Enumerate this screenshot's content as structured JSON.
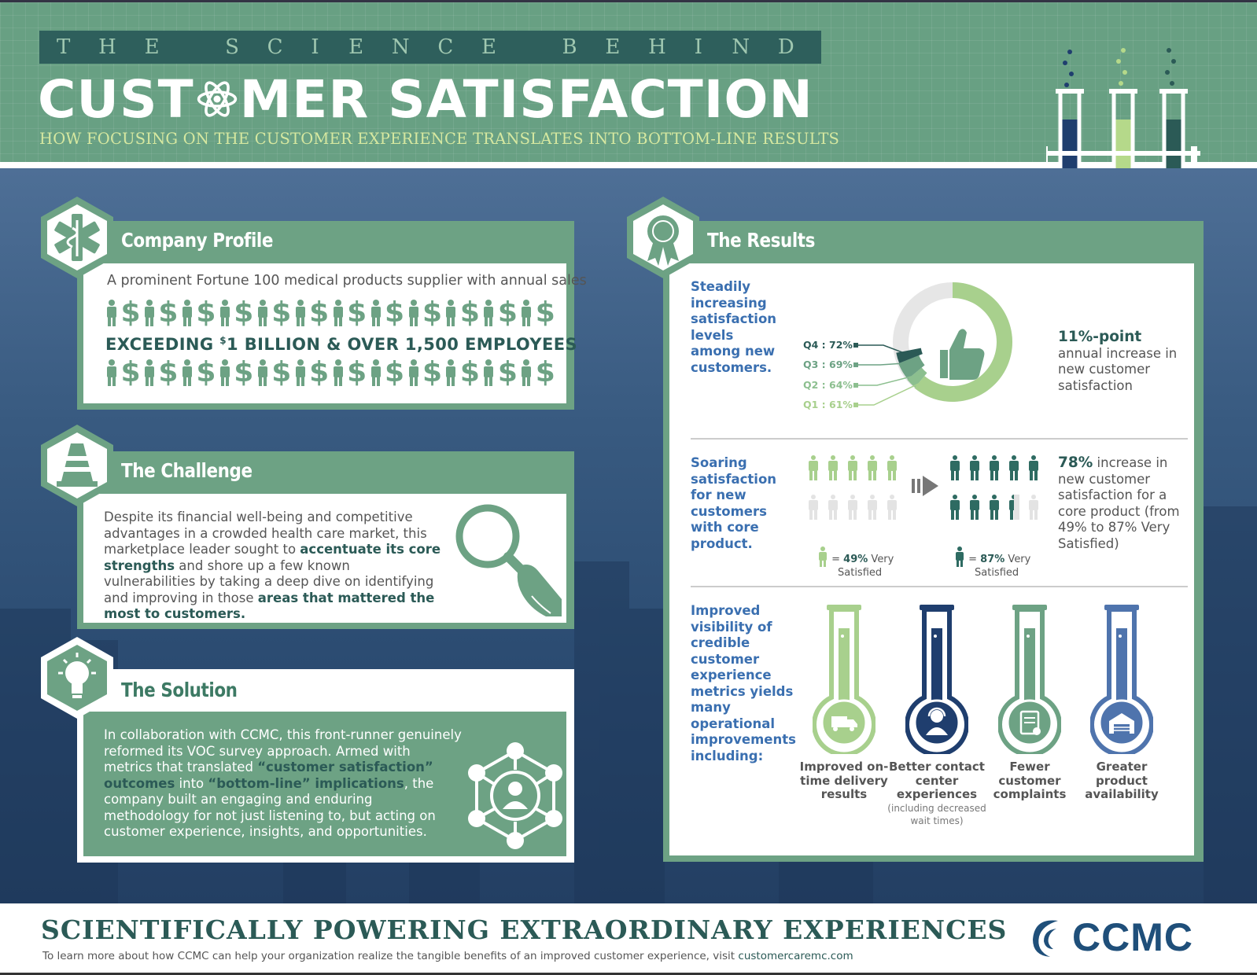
{
  "header": {
    "kicker_letters": [
      "T",
      "H",
      "E",
      "",
      "S",
      "C",
      "I",
      "E",
      "N",
      "C",
      "E",
      "",
      "B",
      "E",
      "H",
      "I",
      "N",
      "D"
    ],
    "title_part1": "CUST",
    "title_part2": "MER SATISFACTION",
    "subtitle": "HOW FOCUSING ON THE CUSTOMER EXPERIENCE TRANSLATES INTO BOTTOM-LINE RESULTS"
  },
  "colors": {
    "green": "#6da284",
    "dark_teal": "#2b5a56",
    "blue_text": "#3a6fb0",
    "light_green": "#a8d08d",
    "navy": "#1f3e6e"
  },
  "profile": {
    "title": "Company Profile",
    "icon": "medical-caduceus-icon",
    "intro": "A prominent Fortune 100 medical products supplier with annual sales",
    "dollar_glyph": "$",
    "exceeding_a": "EXCEEDING ",
    "exceeding_sup": "$",
    "exceeding_b": "1 BILLION & OVER 1,500 EMPLOYEES"
  },
  "challenge": {
    "title": "The Challenge",
    "icon": "traffic-cone-icon",
    "t1": "Despite its financial well-being and competitive advantages in a crowded health care market, this marketplace leader sought to ",
    "b1": "accentuate its core strengths",
    "t2": " and shore up a few known vulnerabilities by taking a deep dive on identifying and improving in those ",
    "b2": "areas that mattered the most to customers."
  },
  "solution": {
    "title": "The Solution",
    "icon": "lightbulb-icon",
    "t1": "In collaboration with CCMC, this front-runner genuinely reformed its VOC survey approach. Armed with metrics that translated ",
    "b1": "“customer satisfaction” outcomes",
    "t2": " into ",
    "b2": "“bottom-line” implications",
    "t3": ", the company built an engaging and enduring methodology for not just listening to, but acting on customer experience, insights, and opportunities."
  },
  "results": {
    "title": "The Results",
    "icon": "award-ribbon-icon",
    "sec1_lead": "Steadily increasing satisfaction levels among new customers.",
    "sec1_stat": "11%-point",
    "sec1_desc": " annual increase in new customer satisfaction",
    "sec2_lead": "Soaring satisfaction for new customers with core product.",
    "sec2_stat": "78%",
    "sec2_desc": " increase in new customer satisfaction for a core product (from 49% to 87% Very Satisfied)",
    "note_before_a": "= ",
    "note_before_b": "49%",
    "note_before_c": " Very",
    "note_before_d": "Satisfied",
    "note_after_a": "= ",
    "note_after_b": "87%",
    "note_after_c": " Very",
    "note_after_d": "Satisfied",
    "sec3_lead": "Improved visibility of credible customer experience metrics yields many operational improvements including:",
    "flasks": [
      {
        "label": "Improved on-time delivery results",
        "note": "",
        "icon": "delivery-truck-icon",
        "color": "#a8d08d"
      },
      {
        "label": "Better contact center experiences",
        "note": "(including decreased wait times)",
        "icon": "headset-agent-icon",
        "color": "#1f3e6e"
      },
      {
        "label": "Fewer customer complaints",
        "note": "",
        "icon": "clipboard-check-icon",
        "color": "#6da284"
      },
      {
        "label": "Greater product availability",
        "note": "",
        "icon": "warehouse-icon",
        "color": "#4f74ad"
      }
    ]
  },
  "chart_data": {
    "type": "pie",
    "categories": [
      "Q1",
      "Q2",
      "Q3",
      "Q4"
    ],
    "values": [
      61,
      64,
      69,
      72
    ],
    "labels": [
      "Q1 : 61%",
      "Q2 : 64%",
      "Q3 : 69%",
      "Q4 : 72%"
    ]
  },
  "footer": {
    "title": "SCIENTIFICALLY POWERING EXTRAORDINARY EXPERIENCES",
    "sub": "To learn more about how CCMC can help your organization realize the tangible benefits of an improved customer experience, visit ",
    "link": "customercaremc.com",
    "logo_text": "CCMC"
  }
}
